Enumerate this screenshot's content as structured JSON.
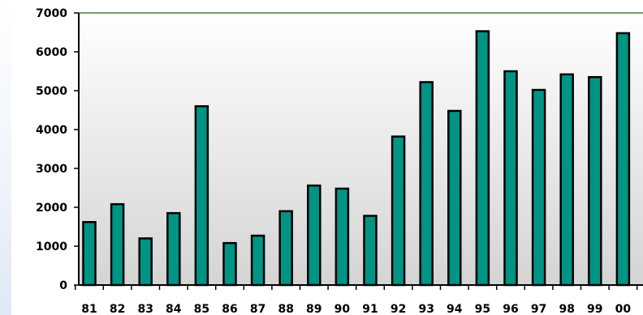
{
  "chart_data": {
    "type": "bar",
    "title": "",
    "xlabel": "",
    "ylabel": "",
    "categories": [
      "81",
      "82",
      "83",
      "84",
      "85",
      "86",
      "87",
      "88",
      "89",
      "90",
      "91",
      "92",
      "93",
      "94",
      "95",
      "96",
      "97",
      "98",
      "99",
      "00"
    ],
    "values": [
      1620,
      2080,
      1200,
      1850,
      4600,
      1080,
      1270,
      1900,
      2560,
      2480,
      1780,
      3820,
      5220,
      4480,
      6530,
      5500,
      5020,
      5420,
      5350,
      6480
    ],
    "ylim": [
      0,
      7000
    ],
    "yticks": [
      0,
      1000,
      2000,
      3000,
      4000,
      5000,
      6000,
      7000
    ],
    "ytick_labels": [
      "0",
      "1000",
      "2000",
      "3000",
      "4000",
      "5000",
      "6000",
      "7000"
    ],
    "grid": false,
    "legend": "none",
    "colors": {
      "bar_fill": "#009485",
      "bar_stroke": "#000000",
      "plot_bg_top": "#ffffff",
      "plot_bg_bottom": "#d4d4d4",
      "top_line": "#2e8b2e"
    }
  }
}
